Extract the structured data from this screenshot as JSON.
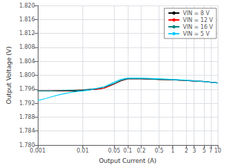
{
  "chart_data": {
    "type": "line",
    "xlabel": "Output Current (A)",
    "ylabel": "Output Voltage (V)",
    "log": "x",
    "grid": true,
    "legend": "upper right",
    "xlim": [
      0.001,
      10
    ],
    "ylim": [
      1.78,
      1.82
    ],
    "xticks": [
      0.001,
      0.01,
      0.05,
      0.1,
      0.2,
      0.5,
      1,
      2,
      3,
      5,
      7,
      10
    ],
    "yticks": [
      {
        "value": 1.78,
        "label": "1.780"
      },
      {
        "value": 1.784,
        "label": "1.784"
      },
      {
        "value": 1.788,
        "label": "1.788"
      },
      {
        "value": 1.792,
        "label": "1.792"
      },
      {
        "value": 1.796,
        "label": "1.796"
      },
      {
        "value": 1.8,
        "label": "1.800"
      },
      {
        "value": 1.804,
        "label": "1.804"
      },
      {
        "value": 1.808,
        "label": "1.808"
      },
      {
        "value": 1.812,
        "label": "1.812"
      },
      {
        "value": 1.816,
        "label": "1.816"
      },
      {
        "value": 1.82,
        "label": "1.820"
      }
    ],
    "series": [
      {
        "name": "VIN = 8 V",
        "color": "#000000",
        "x": [
          0.001,
          0.0015,
          0.002,
          0.003,
          0.005,
          0.007,
          0.01,
          0.02,
          0.03,
          0.05,
          0.07,
          0.1,
          0.2,
          0.5,
          1,
          2,
          3,
          5,
          7,
          10
        ],
        "values": [
          1.7955,
          1.7955,
          1.7955,
          1.7955,
          1.7955,
          1.7955,
          1.7957,
          1.796,
          1.7963,
          1.7975,
          1.7984,
          1.799,
          1.799,
          1.7988,
          1.7987,
          1.7985,
          1.7983,
          1.7982,
          1.798,
          1.7978
        ]
      },
      {
        "name": "VIN = 12 V",
        "color": "#ff0000",
        "x": [
          0.001,
          0.0015,
          0.002,
          0.003,
          0.005,
          0.007,
          0.01,
          0.02,
          0.03,
          0.05,
          0.07,
          0.1,
          0.2,
          0.5,
          1,
          2,
          3,
          5,
          7,
          10
        ],
        "values": [
          1.7955,
          1.7955,
          1.7955,
          1.7956,
          1.7956,
          1.7957,
          1.7958,
          1.796,
          1.7963,
          1.7975,
          1.7984,
          1.799,
          1.799,
          1.7988,
          1.7987,
          1.7985,
          1.7984,
          1.7982,
          1.798,
          1.7978
        ]
      },
      {
        "name": "VIN = 16 V",
        "color": "#008080",
        "x": [
          0.001,
          0.0015,
          0.002,
          0.003,
          0.005,
          0.007,
          0.01,
          0.02,
          0.03,
          0.05,
          0.07,
          0.1,
          0.2,
          0.5,
          1,
          2,
          3,
          5,
          7,
          10
        ],
        "values": [
          1.7955,
          1.7955,
          1.7955,
          1.7956,
          1.7957,
          1.7957,
          1.7958,
          1.7962,
          1.7966,
          1.7976,
          1.7985,
          1.799,
          1.799,
          1.7988,
          1.7987,
          1.7985,
          1.7984,
          1.7982,
          1.798,
          1.7978
        ]
      },
      {
        "name": "VIN = 5 V",
        "color": "#00ccff",
        "x": [
          0.001,
          0.0015,
          0.002,
          0.003,
          0.005,
          0.007,
          0.01,
          0.015,
          0.02,
          0.03,
          0.05,
          0.07,
          0.1,
          0.2,
          0.5,
          1,
          2,
          3,
          5,
          7,
          10
        ],
        "values": [
          1.7928,
          1.7933,
          1.7938,
          1.7944,
          1.795,
          1.7953,
          1.7955,
          1.7958,
          1.7962,
          1.7967,
          1.798,
          1.7988,
          1.7992,
          1.7992,
          1.799,
          1.7988,
          1.7986,
          1.7984,
          1.7982,
          1.798,
          1.7978
        ]
      }
    ]
  }
}
